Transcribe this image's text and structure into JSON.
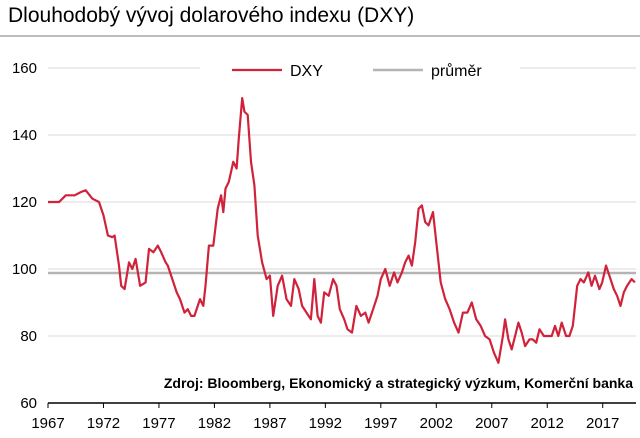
{
  "chart_data": {
    "type": "line",
    "title": "Dlouhodobý vývoj dolarového indexu (DXY)",
    "source": "Zdroj: Bloomberg, Ekonomický a strategický výzkum, Komerční banka",
    "ylim": [
      60,
      160
    ],
    "yticks": [
      60,
      80,
      100,
      120,
      140,
      160
    ],
    "xlim": [
      1967,
      2020
    ],
    "xticks": [
      1967,
      1972,
      1977,
      1982,
      1987,
      1992,
      1997,
      2002,
      2007,
      2012,
      2017
    ],
    "legend": {
      "placement": "top",
      "entries": [
        "DXY",
        "průměr"
      ]
    },
    "grid": true,
    "colors": {
      "series": "#d0223a",
      "average": "#b4b4b4",
      "grid": "#d9d9d9"
    },
    "series": [
      {
        "name": "DXY",
        "x": [
          1967.0,
          1968.0,
          1968.6,
          1969.4,
          1970.0,
          1970.4,
          1971.0,
          1971.6,
          1972.0,
          1972.4,
          1972.8,
          1973.0,
          1973.4,
          1973.6,
          1973.9,
          1974.3,
          1974.6,
          1974.9,
          1975.3,
          1975.8,
          1976.1,
          1976.5,
          1976.9,
          1977.2,
          1977.6,
          1977.8,
          1978.2,
          1978.6,
          1978.9,
          1979.3,
          1979.6,
          1979.9,
          1980.2,
          1980.7,
          1981.0,
          1981.2,
          1981.5,
          1981.9,
          1982.3,
          1982.6,
          1982.8,
          1983.0,
          1983.3,
          1983.7,
          1984.0,
          1984.2,
          1984.5,
          1984.7,
          1985.0,
          1985.3,
          1985.6,
          1985.9,
          1986.3,
          1986.7,
          1987.0,
          1987.3,
          1987.7,
          1988.1,
          1988.5,
          1988.9,
          1989.2,
          1989.6,
          1989.9,
          1990.3,
          1990.7,
          1991.0,
          1991.3,
          1991.6,
          1991.9,
          1992.3,
          1992.7,
          1993.0,
          1993.3,
          1993.7,
          1994.0,
          1994.4,
          1994.8,
          1995.2,
          1995.6,
          1995.9,
          1996.3,
          1996.7,
          1997.0,
          1997.4,
          1997.8,
          1998.2,
          1998.5,
          1998.9,
          1999.2,
          1999.5,
          1999.8,
          2000.1,
          2000.4,
          2000.7,
          2001.0,
          2001.3,
          2001.7,
          2002.0,
          2002.4,
          2002.8,
          2003.2,
          2003.6,
          2004.0,
          2004.4,
          2004.8,
          2005.2,
          2005.6,
          2006.0,
          2006.4,
          2006.8,
          2007.2,
          2007.6,
          2008.0,
          2008.2,
          2008.5,
          2008.8,
          2009.1,
          2009.4,
          2009.7,
          2010.0,
          2010.4,
          2010.7,
          2011.0,
          2011.3,
          2011.7,
          2012.0,
          2012.4,
          2012.7,
          2013.0,
          2013.3,
          2013.7,
          2014.0,
          2014.3,
          2014.7,
          2015.0,
          2015.3,
          2015.7,
          2016.0,
          2016.3,
          2016.7,
          2016.95,
          2017.3,
          2017.6,
          2018.0,
          2018.3,
          2018.6,
          2018.9,
          2019.2,
          2019.6,
          2019.9
        ],
        "y": [
          120,
          120,
          122,
          122,
          123,
          123.5,
          121,
          120,
          116,
          110,
          109.5,
          110,
          101,
          95,
          94,
          102,
          100,
          103,
          95,
          96,
          106,
          105,
          107,
          105,
          102,
          101,
          97,
          93,
          91,
          87,
          88,
          86,
          86,
          91,
          89,
          95,
          107,
          107,
          118,
          122,
          117,
          124,
          126,
          132,
          130,
          139,
          151,
          147,
          146,
          132,
          125,
          110,
          102,
          97,
          98,
          86,
          95,
          98,
          91,
          89,
          97,
          94,
          89,
          87,
          85,
          97,
          86,
          84,
          93,
          92,
          97,
          95,
          88,
          85,
          82,
          81,
          89,
          86,
          87,
          84,
          88,
          92,
          97,
          100,
          95,
          99,
          96,
          99,
          102,
          104,
          101,
          108,
          118,
          119,
          114,
          113,
          117,
          108,
          96,
          91,
          88,
          84,
          81,
          87,
          87,
          90,
          85,
          83,
          80,
          79,
          75,
          72,
          80,
          85,
          79,
          76,
          80,
          84,
          81,
          77,
          79,
          79,
          78,
          82,
          80,
          80,
          80,
          83,
          80,
          84,
          80,
          80,
          83,
          95,
          97,
          96,
          99,
          95,
          98,
          94,
          96,
          101,
          98,
          94,
          92,
          89,
          93,
          95,
          97,
          96
        ]
      },
      {
        "name": "průměr",
        "value": 98.8
      }
    ]
  }
}
